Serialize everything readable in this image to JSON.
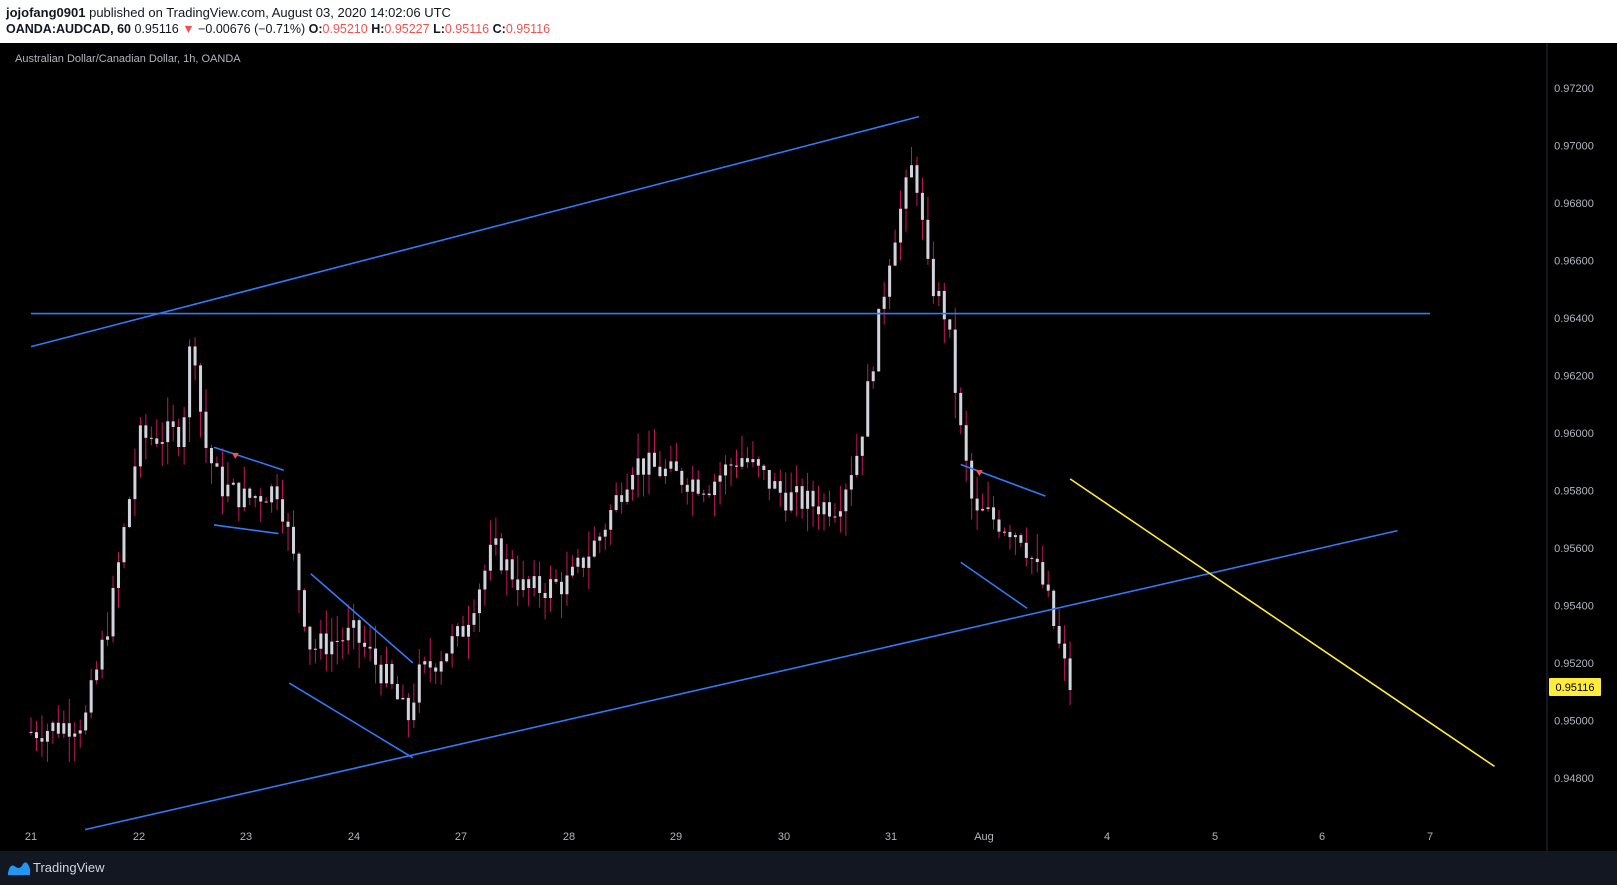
{
  "header": {
    "author": "jojofang0901",
    "published_text": "published on TradingView.com, August 03, 2020 14:02:06 UTC",
    "symbol": "OANDA:AUDCAD, 60",
    "last": "0.95116",
    "change": "−0.00676 (−0.71%)",
    "o_label": "O:",
    "o_value": "0.95210",
    "h_label": "H:",
    "h_value": "0.95227",
    "l_label": "L:",
    "l_value": "0.95116",
    "c_label": "C:",
    "c_value": "0.95116"
  },
  "chart_title": "Australian Dollar/Canadian Dollar, 1h, OANDA",
  "footer": {
    "brand": "TradingView"
  },
  "colors": {
    "background": "#000000",
    "candle_body": "#d1d4dc",
    "candle_wick": "#c2185b",
    "trendline_blue": "#3179f5",
    "trendline_yellow": "#ffeb3b",
    "price_label_bg": "#ffeb3b"
  },
  "chart_data": {
    "type": "candlestick",
    "title": "Australian Dollar/Canadian Dollar, 1h, OANDA",
    "x_tick_labels": [
      "21",
      "22",
      "23",
      "24",
      "27",
      "28",
      "29",
      "30",
      "31",
      "Aug",
      "4",
      "5",
      "6",
      "7"
    ],
    "y_tick_labels": [
      "0.97200",
      "0.97000",
      "0.96800",
      "0.96600",
      "0.96400",
      "0.96200",
      "0.96000",
      "0.95800",
      "0.95600",
      "0.95400",
      "0.95200",
      "0.95000",
      "0.94800"
    ],
    "ylim": [
      0.9462,
      0.9732
    ],
    "current_price": 0.95116,
    "current_price_label": "0.95116",
    "price_path": [
      [
        "21",
        0.9496
      ],
      [
        "21.5",
        0.95
      ],
      [
        "21.75",
        0.954
      ],
      [
        "22",
        0.9598
      ],
      [
        "22.4",
        0.96
      ],
      [
        "22.5",
        0.9638
      ],
      [
        "22.6",
        0.9598
      ],
      [
        "22.75",
        0.9582
      ],
      [
        "23",
        0.9577
      ],
      [
        "23.3",
        0.9581
      ],
      [
        "23.5",
        0.9545
      ],
      [
        "23.6",
        0.9525
      ],
      [
        "24",
        0.953
      ],
      [
        "24.3",
        0.9515
      ],
      [
        "24.5",
        0.95
      ],
      [
        "24.6",
        0.9515
      ],
      [
        "27",
        0.953
      ],
      [
        "27.3",
        0.956
      ],
      [
        "27.6",
        0.9545
      ],
      [
        "28",
        0.9548
      ],
      [
        "28.3",
        0.9565
      ],
      [
        "28.6",
        0.959
      ],
      [
        "29",
        0.9585
      ],
      [
        "29.3",
        0.9582
      ],
      [
        "29.6",
        0.9592
      ],
      [
        "30",
        0.9578
      ],
      [
        "30.3",
        0.9575
      ],
      [
        "30.5",
        0.9575
      ],
      [
        "30.7",
        0.9595
      ],
      [
        "30.85",
        0.963
      ],
      [
        "31",
        0.9665
      ],
      [
        "31.25",
        0.9695
      ],
      [
        "31.4",
        0.9655
      ],
      [
        "31.6",
        0.964
      ],
      [
        "31.75",
        0.96
      ],
      [
        "31.9",
        0.957
      ],
      [
        "Aug",
        0.9572
      ],
      [
        "Aug.3",
        0.9565
      ],
      [
        "Aug.5",
        0.9545
      ],
      [
        "Aug.6",
        0.9527
      ],
      [
        "Aug.7",
        0.9512
      ]
    ],
    "trendlines": [
      {
        "name": "upper-channel",
        "color": "blue",
        "from": [
          "21",
          0.963
        ],
        "to": [
          "31.3",
          0.971
        ]
      },
      {
        "name": "horizontal-resistance",
        "color": "blue",
        "from": [
          "21",
          0.96415
        ],
        "to": [
          "7",
          0.96415
        ]
      },
      {
        "name": "lower-channel",
        "color": "blue",
        "from": [
          "21.5",
          0.9462
        ],
        "to": [
          "6.7",
          0.9566
        ]
      },
      {
        "name": "flag-1-top",
        "color": "blue",
        "from": [
          "22.7",
          0.9595
        ],
        "to": [
          "23.35",
          0.9587
        ]
      },
      {
        "name": "flag-1-bottom",
        "color": "blue",
        "from": [
          "22.7",
          0.9568
        ],
        "to": [
          "23.3",
          0.9565
        ]
      },
      {
        "name": "wedge-top",
        "color": "blue",
        "from": [
          "23.6",
          0.9551
        ],
        "to": [
          "24.55",
          0.952
        ]
      },
      {
        "name": "wedge-bottom",
        "color": "blue",
        "from": [
          "23.4",
          0.9513
        ],
        "to": [
          "24.55",
          0.9487
        ]
      },
      {
        "name": "flag-2-top",
        "color": "blue",
        "from": [
          "31.75",
          0.9589
        ],
        "to": [
          "Aug.5",
          0.9578
        ]
      },
      {
        "name": "flag-2-bottom",
        "color": "blue",
        "from": [
          "31.75",
          0.9555
        ],
        "to": [
          "Aug.35",
          0.9539
        ]
      },
      {
        "name": "projection",
        "color": "yellow",
        "from": [
          "Aug.7",
          0.9584
        ],
        "to": [
          "7.6",
          0.9484
        ]
      }
    ],
    "markers": [
      {
        "type": "down-arrow",
        "color": "red",
        "at": [
          "22.9",
          0.9592
        ]
      },
      {
        "type": "down-arrow",
        "color": "red",
        "at": [
          "31.95",
          0.9586
        ]
      }
    ],
    "grid": false
  }
}
